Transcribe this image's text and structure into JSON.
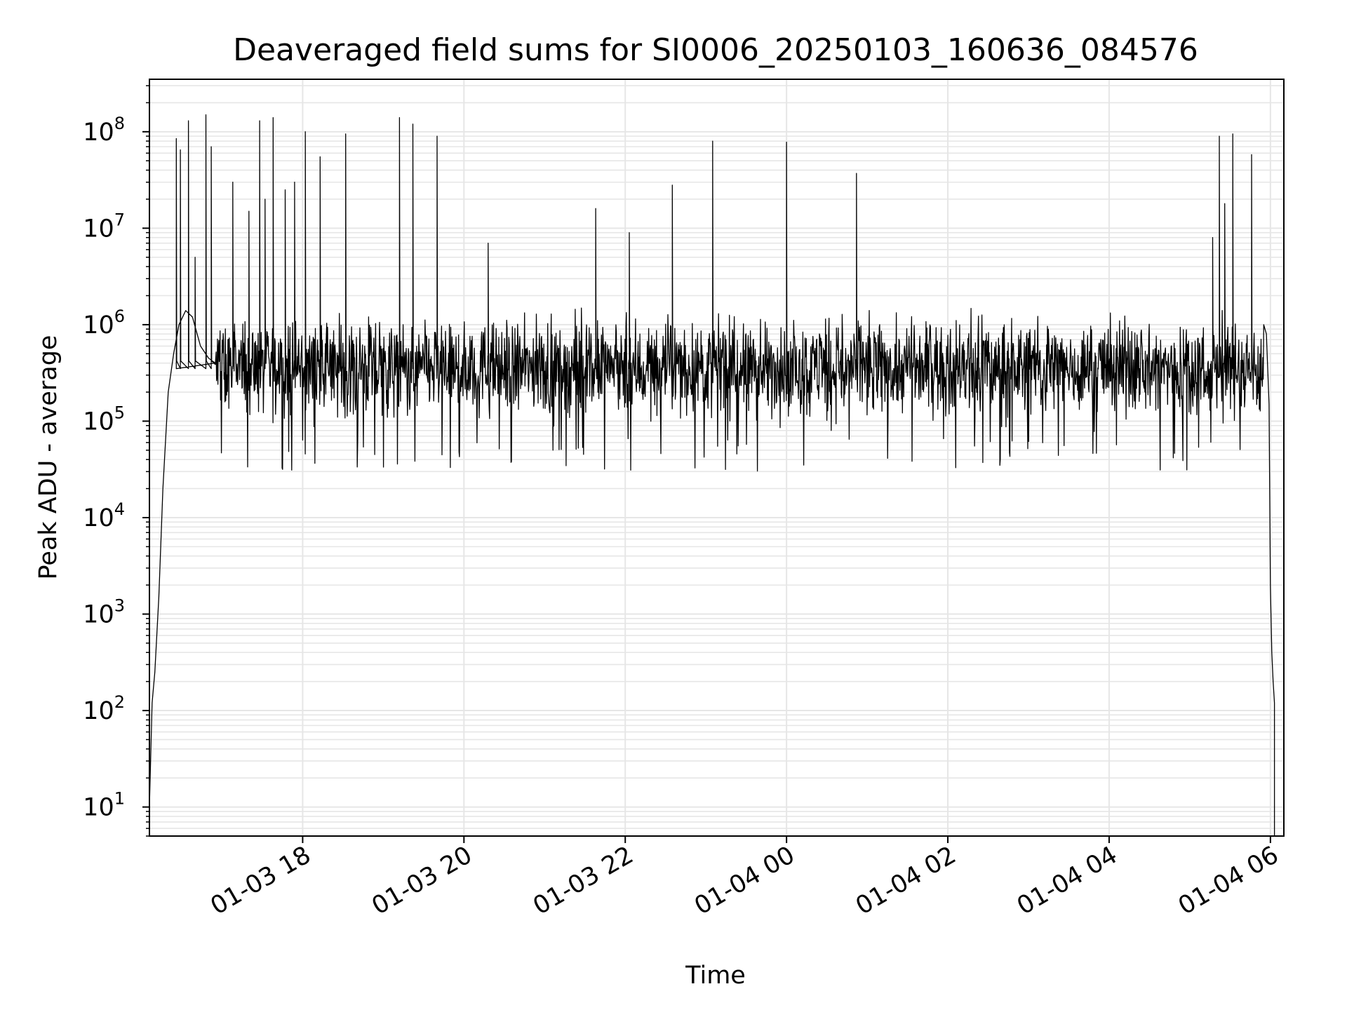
{
  "chart_data": {
    "type": "line",
    "title": "Deaveraged field sums for SI0006_20250103_160636_084576",
    "xlabel": "Time",
    "ylabel": "Peak ADU - average",
    "yscale": "log",
    "ylim": [
      5,
      350000000
    ],
    "xlim": [
      "2025-01-03 16:06",
      "2025-01-04 06:10"
    ],
    "grid": true,
    "line_color": "#000000",
    "grid_color": "#e6e6e6",
    "x_ticks": [
      {
        "t": "2025-01-03 18:00",
        "label": "01-03 18"
      },
      {
        "t": "2025-01-03 20:00",
        "label": "01-03 20"
      },
      {
        "t": "2025-01-03 22:00",
        "label": "01-03 22"
      },
      {
        "t": "2025-01-04 00:00",
        "label": "01-04 00"
      },
      {
        "t": "2025-01-04 02:00",
        "label": "01-04 02"
      },
      {
        "t": "2025-01-04 04:00",
        "label": "01-04 04"
      },
      {
        "t": "2025-01-04 06:00",
        "label": "01-04 06"
      }
    ],
    "y_ticks": [
      {
        "v": 10,
        "base": "10",
        "exp": "1"
      },
      {
        "v": 100,
        "base": "10",
        "exp": "2"
      },
      {
        "v": 1000,
        "base": "10",
        "exp": "3"
      },
      {
        "v": 10000,
        "base": "10",
        "exp": "4"
      },
      {
        "v": 100000,
        "base": "10",
        "exp": "5"
      },
      {
        "v": 1000000,
        "base": "10",
        "exp": "6"
      },
      {
        "v": 10000000,
        "base": "10",
        "exp": "7"
      },
      {
        "v": 100000000,
        "base": "10",
        "exp": "8"
      }
    ],
    "series": [
      {
        "x": [
          "2025-01-03 16:06",
          "2025-01-03 16:08",
          "2025-01-03 16:10",
          "2025-01-03 16:13",
          "2025-01-03 16:16",
          "2025-01-03 16:20",
          "2025-01-03 16:24",
          "2025-01-03 16:28",
          "2025-01-03 16:33",
          "2025-01-03 16:38",
          "2025-01-03 16:44",
          "2025-01-03 16:50",
          "2025-01-03 16:55"
        ],
        "y": [
          10,
          120,
          250,
          1500,
          20000,
          200000,
          500000,
          1000000,
          1400000,
          1200000,
          600000,
          450000,
          400000
        ]
      }
    ],
    "spikes": [
      {
        "t": "2025-01-03 16:26",
        "y": 85000000
      },
      {
        "t": "2025-01-03 16:29",
        "y": 65000000
      },
      {
        "t": "2025-01-03 16:35",
        "y": 130000000
      },
      {
        "t": "2025-01-03 16:40",
        "y": 5000000
      },
      {
        "t": "2025-01-03 16:48",
        "y": 150000000
      },
      {
        "t": "2025-01-03 16:52",
        "y": 70000000
      },
      {
        "t": "2025-01-03 17:08",
        "y": 30000000
      },
      {
        "t": "2025-01-03 17:20",
        "y": 15000000
      },
      {
        "t": "2025-01-03 17:28",
        "y": 130000000
      },
      {
        "t": "2025-01-03 17:32",
        "y": 20000000
      },
      {
        "t": "2025-01-03 17:38",
        "y": 140000000
      },
      {
        "t": "2025-01-03 17:47",
        "y": 25000000
      },
      {
        "t": "2025-01-03 17:54",
        "y": 30000000
      },
      {
        "t": "2025-01-03 18:02",
        "y": 100000000
      },
      {
        "t": "2025-01-03 18:13",
        "y": 55000000
      },
      {
        "t": "2025-01-03 18:32",
        "y": 95000000
      },
      {
        "t": "2025-01-03 19:12",
        "y": 140000000
      },
      {
        "t": "2025-01-03 19:22",
        "y": 120000000
      },
      {
        "t": "2025-01-03 19:40",
        "y": 90000000
      },
      {
        "t": "2025-01-03 20:18",
        "y": 7000000
      },
      {
        "t": "2025-01-03 21:38",
        "y": 16000000
      },
      {
        "t": "2025-01-03 22:03",
        "y": 9000000
      },
      {
        "t": "2025-01-03 22:35",
        "y": 28000000
      },
      {
        "t": "2025-01-03 23:05",
        "y": 80000000
      },
      {
        "t": "2025-01-04 00:00",
        "y": 78000000
      },
      {
        "t": "2025-01-04 00:52",
        "y": 37000000
      },
      {
        "t": "2025-01-04 05:17",
        "y": 8000000
      },
      {
        "t": "2025-01-04 05:22",
        "y": 90000000
      },
      {
        "t": "2025-01-04 05:26",
        "y": 18000000
      },
      {
        "t": "2025-01-04 05:32",
        "y": 95000000
      },
      {
        "t": "2025-01-04 05:46",
        "y": 58000000
      }
    ],
    "noise_band": {
      "median": 350000,
      "low": 30000,
      "high": 1000000
    },
    "tail": [
      {
        "t": "2025-01-04 05:55",
        "y": 1000000
      },
      {
        "t": "2025-01-04 05:57",
        "y": 800000
      },
      {
        "t": "2025-01-04 05:59",
        "y": 150000
      },
      {
        "t": "2025-01-04 06:00",
        "y": 2000
      },
      {
        "t": "2025-01-04 06:01",
        "y": 400
      },
      {
        "t": "2025-01-04 06:02",
        "y": 200
      },
      {
        "t": "2025-01-04 06:03",
        "y": 120
      },
      {
        "t": "2025-01-04 06:03",
        "y": 5
      }
    ]
  }
}
